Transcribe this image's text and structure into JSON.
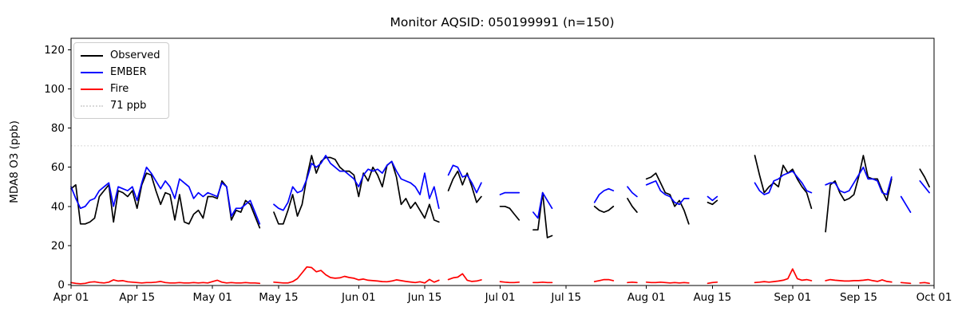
{
  "title": "Monitor AQSID: 050199991 (n=150)",
  "chart_data": {
    "type": "line",
    "title": "Monitor AQSID: 050199991 (n=150)",
    "xlabel": "",
    "ylabel": "MDA8 O3 (ppb)",
    "ylim": [
      -0.5,
      126
    ],
    "yticks": [
      0,
      20,
      40,
      60,
      80,
      100,
      120
    ],
    "x_range_days": 183,
    "x_start": "Apr 01",
    "x_end": "Oct 01",
    "grid": false,
    "legend_position": "upper left",
    "xticks": [
      {
        "label": "Apr 01",
        "day": 0
      },
      {
        "label": "Apr 15",
        "day": 14
      },
      {
        "label": "May 01",
        "day": 30
      },
      {
        "label": "May 15",
        "day": 44
      },
      {
        "label": "Jun 01",
        "day": 61
      },
      {
        "label": "Jun 15",
        "day": 75
      },
      {
        "label": "Jul 01",
        "day": 91
      },
      {
        "label": "Jul 15",
        "day": 105
      },
      {
        "label": "Aug 01",
        "day": 122
      },
      {
        "label": "Aug 15",
        "day": 136
      },
      {
        "label": "Sep 01",
        "day": 153
      },
      {
        "label": "Sep 15",
        "day": 167
      },
      {
        "label": "Oct 01",
        "day": 183
      }
    ],
    "threshold": {
      "value": 71,
      "label": "71 ppb",
      "color": "#d9d9d9",
      "style": "dotted"
    },
    "series": [
      {
        "name": "Observed",
        "color": "#000000",
        "values": [
          49,
          51,
          31,
          31,
          32,
          34,
          45,
          48,
          51,
          32,
          48,
          47,
          45,
          48,
          39,
          51,
          57,
          56,
          48,
          41,
          47,
          46,
          33,
          46,
          32,
          31,
          36,
          38,
          34,
          45,
          45,
          44,
          53,
          50,
          33,
          38,
          37,
          43,
          41,
          35,
          29,
          null,
          null,
          37,
          31,
          31,
          38,
          46,
          35,
          41,
          55,
          66,
          57,
          63,
          65,
          65,
          64,
          60,
          58,
          58,
          56,
          45,
          57,
          53,
          60,
          56,
          50,
          61,
          63,
          55,
          41,
          44,
          39,
          42,
          38,
          34,
          41,
          33,
          32,
          null,
          48,
          54,
          58,
          51,
          57,
          50,
          42,
          45,
          null,
          null,
          null,
          40,
          40,
          39,
          36,
          33,
          null,
          null,
          28,
          28,
          47,
          24,
          25,
          null,
          null,
          null,
          null,
          null,
          null,
          null,
          null,
          40,
          38,
          37,
          38,
          40,
          null,
          null,
          44,
          40,
          37,
          null,
          54,
          55,
          57,
          52,
          47,
          46,
          40,
          43,
          38,
          31,
          null,
          null,
          null,
          42,
          41,
          43,
          null,
          null,
          null,
          null,
          null,
          null,
          null,
          66,
          56,
          47,
          50,
          52,
          50,
          61,
          57,
          59,
          54,
          50,
          47,
          39,
          null,
          null,
          27,
          51,
          53,
          47,
          43,
          44,
          46,
          55,
          66,
          55,
          54,
          54,
          48,
          43,
          54,
          null,
          null,
          null,
          null,
          null,
          59,
          55,
          50
        ]
      },
      {
        "name": "EMBER",
        "color": "#0000ff",
        "values": [
          50,
          44,
          39,
          40,
          43,
          44,
          48,
          50,
          52,
          40,
          50,
          49,
          48,
          50,
          43,
          52,
          60,
          57,
          53,
          49,
          53,
          50,
          44,
          54,
          52,
          50,
          44,
          47,
          45,
          47,
          46,
          45,
          52,
          50,
          35,
          39,
          39,
          41,
          43,
          37,
          31,
          null,
          null,
          41,
          39,
          38,
          42,
          50,
          47,
          48,
          54,
          62,
          60,
          62,
          66,
          62,
          60,
          58,
          58,
          56,
          54,
          50,
          56,
          59,
          58,
          59,
          57,
          61,
          63,
          58,
          54,
          53,
          52,
          50,
          46,
          57,
          44,
          50,
          39,
          null,
          56,
          61,
          60,
          55,
          56,
          52,
          47,
          52,
          null,
          null,
          null,
          46,
          47,
          47,
          47,
          47,
          null,
          null,
          37,
          34,
          47,
          43,
          39,
          null,
          null,
          null,
          null,
          null,
          null,
          null,
          null,
          42,
          46,
          48,
          49,
          48,
          null,
          null,
          50,
          47,
          45,
          null,
          51,
          52,
          53,
          48,
          46,
          45,
          42,
          41,
          44,
          44,
          null,
          null,
          null,
          45,
          43,
          45,
          null,
          null,
          null,
          null,
          null,
          null,
          null,
          52,
          48,
          46,
          47,
          53,
          54,
          56,
          57,
          58,
          55,
          52,
          48,
          47,
          null,
          null,
          51,
          52,
          52,
          48,
          47,
          48,
          52,
          56,
          60,
          54,
          54,
          53,
          47,
          46,
          55,
          null,
          45,
          41,
          37,
          null,
          53,
          50,
          47
        ]
      },
      {
        "name": "Fire",
        "color": "#ff0000",
        "values": [
          1,
          0.6,
          0.4,
          0.6,
          1.2,
          1.4,
          1,
          0.8,
          1.2,
          2.4,
          1.8,
          2,
          1.4,
          1.2,
          1,
          0.8,
          1,
          1,
          1.2,
          1.6,
          1,
          0.8,
          0.8,
          1,
          0.8,
          0.8,
          1,
          0.8,
          1,
          0.8,
          1.5,
          2.2,
          1.2,
          0.8,
          1,
          0.8,
          0.8,
          1,
          0.8,
          0.8,
          0.6,
          null,
          null,
          1.2,
          1,
          0.8,
          0.8,
          1.5,
          3,
          6,
          9,
          8.7,
          6.5,
          7.2,
          5,
          3.6,
          3.2,
          3.4,
          4.2,
          3.6,
          3.2,
          2.4,
          2.8,
          2.2,
          2,
          1.8,
          1.5,
          1.4,
          1.8,
          2.4,
          2,
          1.6,
          1.3,
          1,
          1.4,
          0.8,
          2.6,
          1.2,
          2.2,
          null,
          2.5,
          3.4,
          3.8,
          5.5,
          2.2,
          1.6,
          1.8,
          2.4,
          null,
          null,
          null,
          1.5,
          1.2,
          1,
          1,
          1.2,
          null,
          null,
          1,
          1,
          1.2,
          1,
          1,
          null,
          null,
          null,
          null,
          null,
          null,
          null,
          null,
          1.5,
          2,
          2.5,
          2.5,
          2,
          null,
          null,
          1,
          1.2,
          1,
          null,
          1.2,
          1,
          1,
          1.2,
          1,
          0.8,
          1,
          0.8,
          1,
          0.8,
          null,
          null,
          null,
          0.6,
          1,
          1.2,
          null,
          null,
          null,
          null,
          null,
          null,
          null,
          1,
          1.2,
          1.5,
          1.2,
          1.5,
          1.8,
          2.2,
          3,
          8,
          3,
          2.2,
          2.5,
          2,
          null,
          null,
          2,
          2.5,
          2.2,
          2,
          1.8,
          1.8,
          2,
          2,
          2.2,
          2.5,
          2,
          1.6,
          2.4,
          1.6,
          1.3,
          null,
          1,
          0.8,
          0.6,
          null,
          0.8,
          1,
          0.6
        ]
      }
    ]
  }
}
